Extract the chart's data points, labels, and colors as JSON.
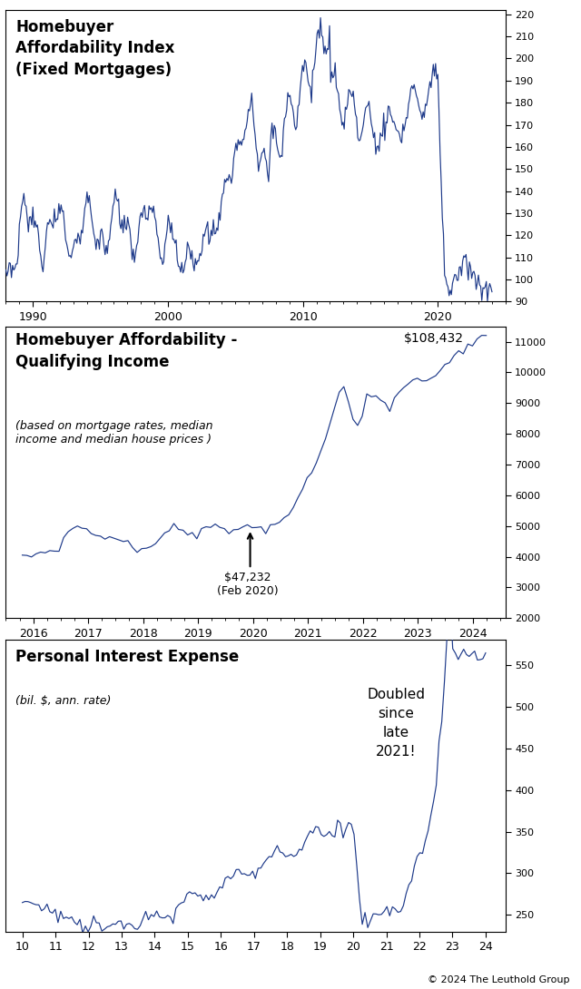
{
  "chart1": {
    "title": "Homebuyer\nAffordability Index\n(Fixed Mortgages)",
    "ylim": [
      90,
      222
    ],
    "yticks": [
      90,
      100,
      110,
      120,
      130,
      140,
      150,
      160,
      170,
      180,
      190,
      200,
      210,
      220
    ],
    "xticks": [
      1990,
      2000,
      2010,
      2020
    ],
    "xlim": [
      1988,
      2025
    ]
  },
  "chart2": {
    "title": "Homebuyer Affordability -\nQualifying Income",
    "subtitle": "(based on mortgage rates, median\nincome and median house prices )",
    "ylim": [
      2000,
      11500
    ],
    "yticks": [
      2000,
      3000,
      4000,
      5000,
      6000,
      7000,
      8000,
      9000,
      10000,
      11000
    ],
    "xtick_vals": [
      2016,
      2017,
      2018,
      2019,
      2020,
      2021,
      2022,
      2023,
      2024
    ],
    "xtick_labels": [
      "2016",
      "2017",
      "2018",
      "2019",
      "2020",
      "2021",
      "2022",
      "2023",
      "2024"
    ],
    "xlim": [
      2015.5,
      2024.6
    ]
  },
  "chart3": {
    "title": "Personal Interest Expense",
    "subtitle": "(bil. $, ann. rate)",
    "ylim": [
      230,
      580
    ],
    "yticks": [
      250,
      300,
      350,
      400,
      450,
      500,
      550
    ],
    "xtick_vals": [
      2010,
      2011,
      2012,
      2013,
      2014,
      2015,
      2016,
      2017,
      2018,
      2019,
      2020,
      2021,
      2022,
      2023,
      2024
    ],
    "xtick_labels": [
      "10",
      "11",
      "12",
      "13",
      "14",
      "15",
      "16",
      "17",
      "18",
      "19",
      "20",
      "21",
      "22",
      "23",
      "24"
    ],
    "xlim": [
      2009.5,
      2024.6
    ]
  },
  "bg_color": "#ffffff",
  "line_color": "#1e3a8a",
  "copyright": "© 2024 The Leuthold Group"
}
